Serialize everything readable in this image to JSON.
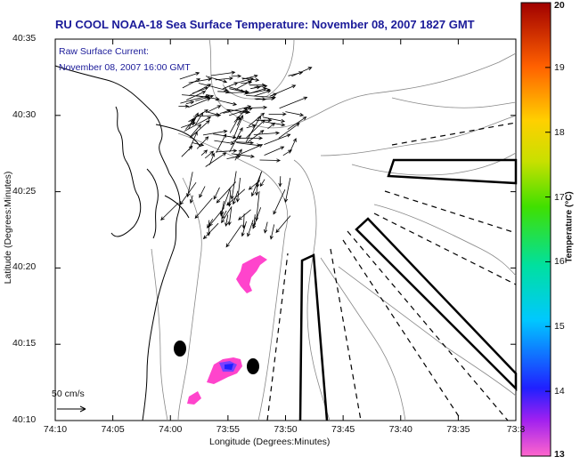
{
  "title": "RU COOL  NOAA-18  Sea Surface Temperature:  November 08, 2007 1827 GMT",
  "current_note": {
    "line1": "Raw Surface Current:",
    "line2": "November 08, 2007 16:00 GMT"
  },
  "scale_label": "50 cm/s",
  "axes": {
    "xlabel": "Longitude (Degrees:Minutes)",
    "ylabel": "Latitude (Degrees:Minutes)",
    "x_ticks": [
      "74:10",
      "74:05",
      "74:00",
      "73:55",
      "73:50",
      "73:45",
      "73:40",
      "73:35",
      "73:3"
    ],
    "y_ticks": [
      "40:35",
      "40:30",
      "40:25",
      "40:20",
      "40:15",
      "40:10"
    ]
  },
  "colorbar": {
    "label": "Temperature (°C)",
    "ticks": [
      "20",
      "19",
      "18",
      "17",
      "16",
      "15",
      "14",
      "13"
    ],
    "min": 13,
    "max": 20
  },
  "colors": {
    "title": "#1a1a99",
    "sst_patch": "#ff44cc",
    "sst_warm_core": "#3030ff",
    "land_contour": "#000000",
    "bathymetry": "#888888"
  }
}
